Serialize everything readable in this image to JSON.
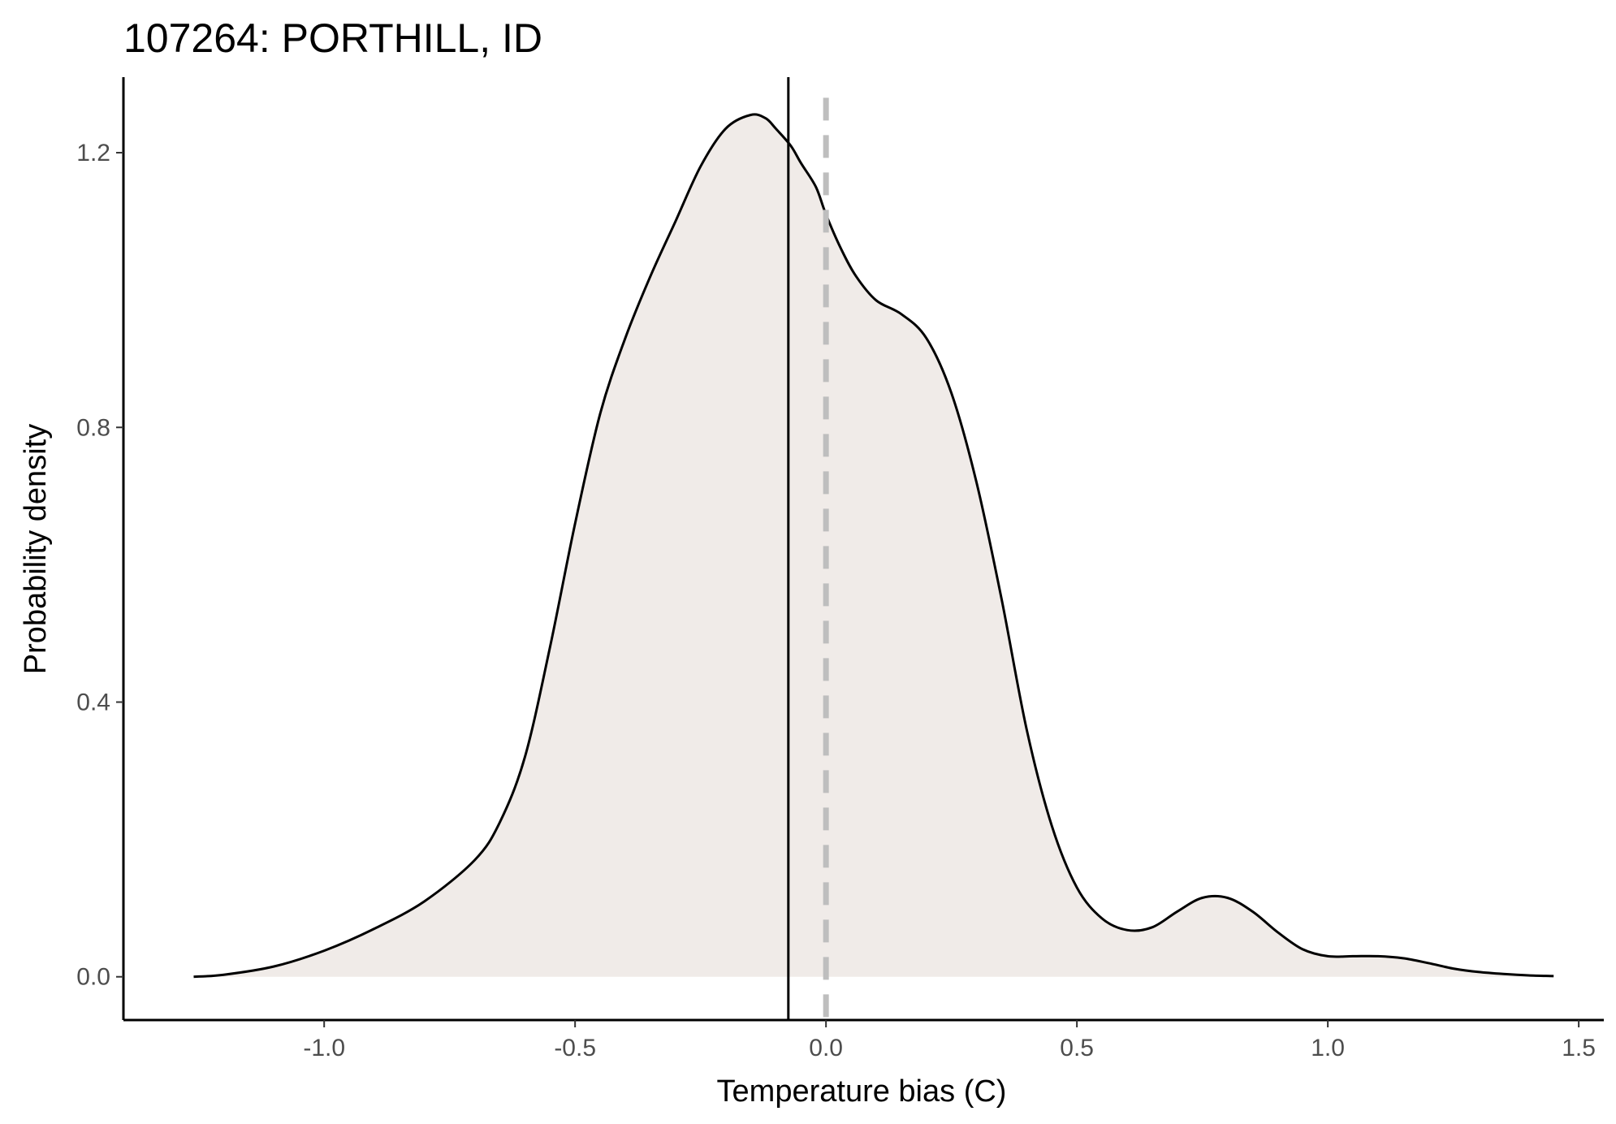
{
  "chart_data": {
    "type": "area",
    "title": "107264: PORTHILL, ID",
    "xlabel": "Temperature bias (C)",
    "ylabel": "Probability density",
    "xlim": [
      -1.4,
      1.55
    ],
    "ylim": [
      -0.063,
      1.31
    ],
    "x_ticks": [
      -1.0,
      -0.5,
      0.0,
      0.5,
      1.0,
      1.5
    ],
    "x_tick_labels": [
      "-1.0",
      "-0.5",
      "0.0",
      "0.5",
      "1.0",
      "1.5"
    ],
    "y_ticks": [
      0.0,
      0.4,
      0.8,
      1.2
    ],
    "y_tick_labels": [
      "0.0",
      "0.4",
      "0.8",
      "1.2"
    ],
    "grid": false,
    "legend": "none",
    "series": [
      {
        "x": [
          -1.26,
          -1.2,
          -1.1,
          -1.0,
          -0.9,
          -0.8,
          -0.7,
          -0.65,
          -0.6,
          -0.55,
          -0.5,
          -0.45,
          -0.4,
          -0.35,
          -0.3,
          -0.25,
          -0.2,
          -0.15,
          -0.12,
          -0.1,
          -0.07,
          -0.05,
          -0.02,
          0.0,
          0.03,
          0.06,
          0.1,
          0.15,
          0.2,
          0.25,
          0.3,
          0.35,
          0.4,
          0.45,
          0.5,
          0.55,
          0.6,
          0.65,
          0.7,
          0.75,
          0.8,
          0.85,
          0.9,
          0.95,
          1.0,
          1.05,
          1.1,
          1.15,
          1.2,
          1.25,
          1.3,
          1.35,
          1.4,
          1.45
        ],
        "y": [
          0.0,
          0.003,
          0.015,
          0.038,
          0.07,
          0.11,
          0.17,
          0.225,
          0.32,
          0.48,
          0.66,
          0.82,
          0.93,
          1.02,
          1.1,
          1.18,
          1.235,
          1.255,
          1.25,
          1.235,
          1.21,
          1.185,
          1.15,
          1.11,
          1.06,
          1.02,
          0.985,
          0.965,
          0.93,
          0.85,
          0.72,
          0.55,
          0.36,
          0.22,
          0.13,
          0.085,
          0.068,
          0.072,
          0.095,
          0.115,
          0.115,
          0.095,
          0.065,
          0.04,
          0.03,
          0.03,
          0.03,
          0.027,
          0.02,
          0.012,
          0.007,
          0.004,
          0.002,
          0.001
        ]
      }
    ],
    "reference_lines": [
      {
        "x": -0.075,
        "style": "solid",
        "color": "#000000"
      },
      {
        "x": 0.0,
        "style": "dashed",
        "color": "#bebebe"
      }
    ],
    "fill_color": "#f0ebe8",
    "line_color": "#000000"
  }
}
